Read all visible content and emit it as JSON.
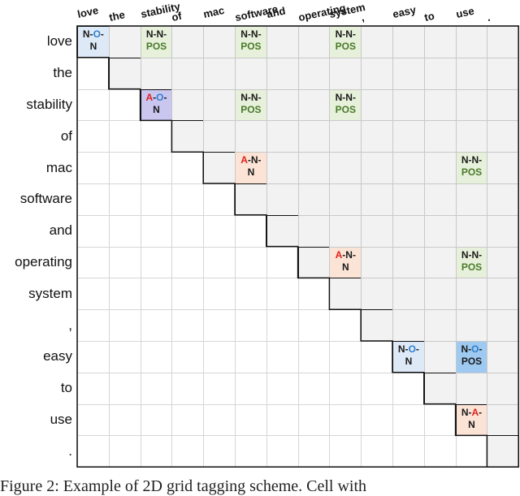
{
  "tokens": [
    "love",
    "the",
    "stability",
    "of",
    "mac",
    "software",
    "and",
    "operating",
    "system",
    ",",
    "easy",
    "to",
    "use",
    "."
  ],
  "tags": [
    {
      "r": 0,
      "c": 0,
      "cls": "tag-non",
      "parts": [
        [
          "N-",
          ""
        ],
        [
          "O",
          "blue"
        ],
        [
          "-",
          ""
        ],
        [
          "|",
          ""
        ],
        [
          "N",
          ""
        ]
      ]
    },
    {
      "r": 0,
      "c": 2,
      "cls": "tag-nnpos",
      "parts": [
        [
          "N-N-",
          ""
        ],
        [
          "|",
          ""
        ],
        [
          "POS",
          "green"
        ]
      ]
    },
    {
      "r": 0,
      "c": 5,
      "cls": "tag-nnpos",
      "parts": [
        [
          "N-N-",
          ""
        ],
        [
          "|",
          ""
        ],
        [
          "POS",
          "green"
        ]
      ]
    },
    {
      "r": 0,
      "c": 8,
      "cls": "tag-nnpos",
      "parts": [
        [
          "N-N-",
          ""
        ],
        [
          "|",
          ""
        ],
        [
          "POS",
          "green"
        ]
      ]
    },
    {
      "r": 2,
      "c": 2,
      "cls": "tag-aon",
      "parts": [
        [
          "A",
          "red"
        ],
        [
          "-",
          ""
        ],
        [
          "O",
          "blue"
        ],
        [
          "-",
          ""
        ],
        [
          "|",
          ""
        ],
        [
          "N",
          ""
        ]
      ]
    },
    {
      "r": 2,
      "c": 5,
      "cls": "tag-nnpos",
      "parts": [
        [
          "N-N-",
          ""
        ],
        [
          "|",
          ""
        ],
        [
          "POS",
          "green"
        ]
      ]
    },
    {
      "r": 2,
      "c": 8,
      "cls": "tag-nnpos",
      "parts": [
        [
          "N-N-",
          ""
        ],
        [
          "|",
          ""
        ],
        [
          "POS",
          "green"
        ]
      ]
    },
    {
      "r": 4,
      "c": 5,
      "cls": "tag-ann",
      "parts": [
        [
          "A",
          "red"
        ],
        [
          "-N-",
          ""
        ],
        [
          "|",
          ""
        ],
        [
          "N",
          ""
        ]
      ]
    },
    {
      "r": 4,
      "c": 12,
      "cls": "tag-nnpos",
      "parts": [
        [
          "N-N-",
          ""
        ],
        [
          "|",
          ""
        ],
        [
          "POS",
          "green"
        ]
      ]
    },
    {
      "r": 7,
      "c": 8,
      "cls": "tag-ann",
      "parts": [
        [
          "A",
          "red"
        ],
        [
          "-N-",
          ""
        ],
        [
          "|",
          ""
        ],
        [
          "N",
          ""
        ]
      ]
    },
    {
      "r": 7,
      "c": 12,
      "cls": "tag-nnpos",
      "parts": [
        [
          "N-N-",
          ""
        ],
        [
          "|",
          ""
        ],
        [
          "POS",
          "green"
        ]
      ]
    },
    {
      "r": 10,
      "c": 10,
      "cls": "tag-non",
      "parts": [
        [
          "N-",
          ""
        ],
        [
          "O",
          "blue"
        ],
        [
          "-",
          ""
        ],
        [
          "|",
          ""
        ],
        [
          "N",
          ""
        ]
      ]
    },
    {
      "r": 10,
      "c": 12,
      "cls": "tag-nopos",
      "parts": [
        [
          "N-",
          ""
        ],
        [
          "O",
          "blue"
        ],
        [
          "-",
          ""
        ],
        [
          "|",
          ""
        ],
        [
          "POS",
          ""
        ]
      ]
    },
    {
      "r": 12,
      "c": 12,
      "cls": "tag-ann",
      "parts": [
        [
          "N-",
          ""
        ],
        [
          "A",
          "red"
        ],
        [
          "-",
          ""
        ],
        [
          "|",
          ""
        ],
        [
          "N",
          ""
        ]
      ]
    }
  ],
  "caption": "Figure 2: Example of 2D grid tagging scheme. Cell with"
}
